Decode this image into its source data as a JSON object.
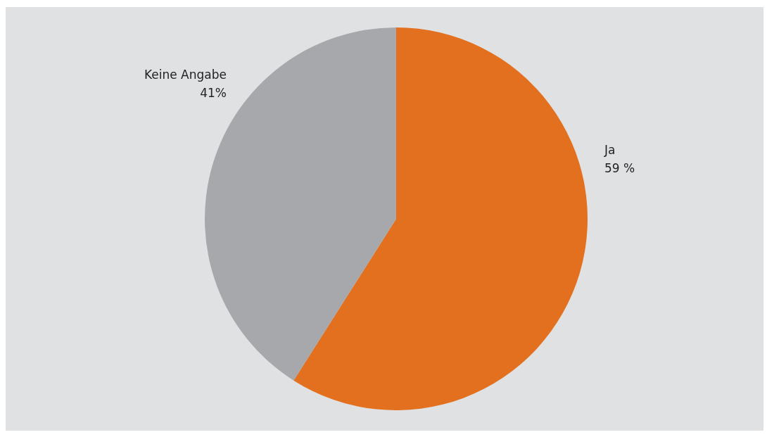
{
  "chart_data": {
    "type": "pie",
    "categories": [
      "Ja",
      "Keine Angabe"
    ],
    "values": [
      59,
      41
    ],
    "value_labels": [
      "59 %",
      "41%"
    ],
    "colors": [
      "#e3701e",
      "#a7a8ab"
    ]
  }
}
